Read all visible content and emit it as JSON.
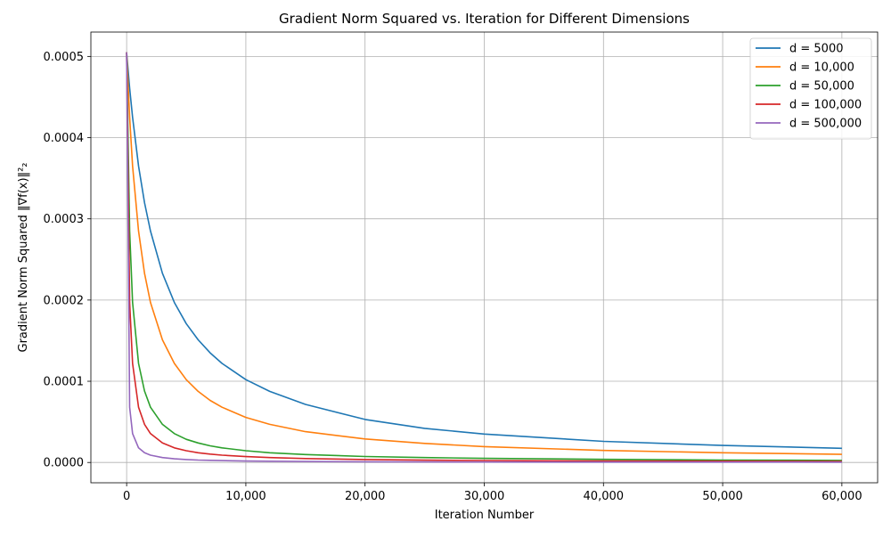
{
  "chart_data": {
    "type": "line",
    "title": "Gradient Norm Squared vs. Iteration for Different Dimensions",
    "xlabel": "Iteration Number",
    "ylabel": "Gradient Norm Squared ‖∇f(x)‖²₂",
    "xlim": [
      -3000,
      63000
    ],
    "ylim": [
      -2.5e-05,
      0.00053
    ],
    "xticks": [
      0,
      10000,
      20000,
      30000,
      40000,
      50000,
      60000
    ],
    "xtick_labels": [
      "0",
      "10,000",
      "20,000",
      "30,000",
      "40,000",
      "50,000",
      "60,000"
    ],
    "yticks": [
      0.0,
      0.0001,
      0.0002,
      0.0003,
      0.0004,
      0.0005
    ],
    "ytick_labels": [
      "0.0000",
      "0.0001",
      "0.0002",
      "0.0003",
      "0.0004",
      "0.0005"
    ],
    "grid": true,
    "legend_position": "top-right",
    "x": [
      0,
      250,
      500,
      1000,
      1500,
      2000,
      3000,
      4000,
      5000,
      6000,
      7000,
      8000,
      10000,
      12000,
      15000,
      20000,
      25000,
      30000,
      40000,
      50000,
      60000
    ],
    "series": [
      {
        "name": "d = 5000",
        "color": "#1f77b4",
        "values": [
          0.000505,
          0.000461,
          0.000425,
          0.000365,
          0.00032,
          0.000285,
          0.000233,
          0.000197,
          0.000171,
          0.000151,
          0.000135,
          0.000122,
          0.000102,
          8.75e-05,
          7.15e-05,
          5.3e-05,
          4.2e-05,
          3.5e-05,
          2.6e-05,
          2.1e-05,
          1.75e-05
        ]
      },
      {
        "name": "d = 10,000",
        "color": "#ff7f0e",
        "values": [
          0.000505,
          0.000425,
          0.000365,
          0.000285,
          0.000233,
          0.000197,
          0.000151,
          0.000122,
          0.000102,
          8.75e-05,
          7.65e-05,
          6.8e-05,
          5.55e-05,
          4.7e-05,
          3.8e-05,
          2.9e-05,
          2.35e-05,
          1.95e-05,
          1.48e-05,
          1.2e-05,
          1e-05
        ]
      },
      {
        "name": "d = 50,000",
        "color": "#2ca02c",
        "values": [
          0.000505,
          0.000285,
          0.000197,
          0.000122,
          8.8e-05,
          6.8e-05,
          4.7e-05,
          3.55e-05,
          2.85e-05,
          2.4e-05,
          2.05e-05,
          1.8e-05,
          1.45e-05,
          1.2e-05,
          9.8e-06,
          7.4e-06,
          6e-06,
          5e-06,
          3.8e-06,
          3e-06,
          2.5e-06
        ]
      },
      {
        "name": "d = 100,000",
        "color": "#d62728",
        "values": [
          0.000505,
          0.000197,
          0.000122,
          6.8e-05,
          4.7e-05,
          3.55e-05,
          2.4e-05,
          1.8e-05,
          1.45e-05,
          1.2e-05,
          1.03e-05,
          9e-06,
          7.2e-06,
          6e-06,
          4.8e-06,
          3.6e-06,
          2.9e-06,
          2.4e-06,
          1.8e-06,
          1.5e-06,
          1.2e-06
        ]
      },
      {
        "name": "d = 500,000",
        "color": "#9467bd",
        "values": [
          0.000505,
          6.8e-05,
          3.55e-05,
          1.8e-05,
          1.2e-05,
          9e-06,
          6e-06,
          4.5e-06,
          3.6e-06,
          3e-06,
          2.6e-06,
          2.3e-06,
          1.8e-06,
          1.5e-06,
          1.2e-06,
          9e-07,
          7e-07,
          6e-07,
          5e-07,
          4e-07,
          3e-07
        ]
      }
    ]
  }
}
